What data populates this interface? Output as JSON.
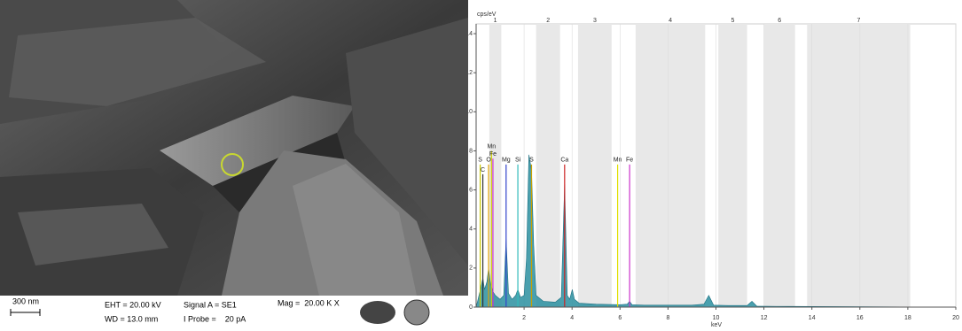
{
  "sem_panel": {
    "scale_label": "300 nm",
    "eht": "EHT = 20.00 kV",
    "wd": "WD = 13.0 mm",
    "signal": "Signal A = SE1",
    "probe": "I Probe =    20 pA",
    "mag": "Mag =  20.00 K X"
  },
  "chart_data": {
    "type": "area",
    "y_label": "cps/eV",
    "x_label": "keV",
    "xlim": [
      0,
      20
    ],
    "ylim": [
      0,
      14.5
    ],
    "xticks": [
      2,
      4,
      6,
      8,
      10,
      12,
      14,
      16,
      18,
      20
    ],
    "yticks": [
      0,
      2,
      4,
      6,
      8,
      10,
      12,
      14
    ],
    "series": [
      {
        "color": "#2a8fa0",
        "x": [
          0,
          0.1,
          0.2,
          0.28,
          0.35,
          0.45,
          0.52,
          0.6,
          0.7,
          0.8,
          1.0,
          1.15,
          1.25,
          1.35,
          1.5,
          1.65,
          1.74,
          1.85,
          2.0,
          2.1,
          2.2,
          2.31,
          2.4,
          2.5,
          2.8,
          3.3,
          3.55,
          3.69,
          3.8,
          3.9,
          4.01,
          4.1,
          4.3,
          5,
          6,
          6.3,
          6.4,
          6.5,
          7,
          8,
          9,
          9.5,
          9.7,
          9.9,
          10.5,
          11.3,
          11.5,
          11.7,
          12.5,
          14,
          16,
          18,
          20
        ],
        "values": [
          0,
          0.5,
          1.0,
          1.5,
          0.9,
          1.3,
          2.0,
          1.2,
          0.8,
          0.6,
          0.4,
          0.6,
          3.5,
          0.7,
          0.4,
          0.6,
          0.9,
          0.5,
          0.6,
          2.5,
          7.8,
          7.0,
          3.2,
          0.6,
          0.3,
          0.25,
          0.5,
          6.3,
          0.6,
          0.4,
          0.9,
          0.4,
          0.2,
          0.15,
          0.12,
          0.15,
          0.3,
          0.12,
          0.1,
          0.1,
          0.1,
          0.15,
          0.6,
          0.1,
          0.08,
          0.08,
          0.3,
          0.05,
          0.04,
          0.03,
          0.02,
          0.01,
          0
        ]
      }
    ],
    "markers": [
      {
        "label": "S",
        "x": 0.17,
        "value": 7.3,
        "color": "#c8c800"
      },
      {
        "label": "C",
        "x": 0.28,
        "value": 6.8,
        "color": "#333333"
      },
      {
        "label": "O",
        "x": 0.52,
        "value": 7.3,
        "color": "#e0a000"
      },
      {
        "label": "Mn",
        "x": 0.64,
        "value": 8.0,
        "color": "#d0d000"
      },
      {
        "label": "Fe",
        "x": 0.7,
        "value": 7.6,
        "color": "#cc33cc"
      },
      {
        "label": "Mg",
        "x": 1.25,
        "value": 7.3,
        "color": "#3344cc"
      },
      {
        "label": "Si",
        "x": 1.74,
        "value": 7.3,
        "color": "#33bbbb"
      },
      {
        "label": "S",
        "x": 2.31,
        "value": 7.3,
        "color": "#c8a000"
      },
      {
        "label": "Ca",
        "x": 3.69,
        "value": 7.3,
        "color": "#cc2222"
      },
      {
        "label": "Mn",
        "x": 5.9,
        "value": 7.3,
        "color": "#e0e000"
      },
      {
        "label": "Fe",
        "x": 6.4,
        "value": 7.3,
        "color": "#cc33cc"
      }
    ],
    "regions": [
      {
        "label": "1",
        "range": [
          0.55,
          1.05
        ]
      },
      {
        "label": "2",
        "range": [
          2.5,
          3.5
        ]
      },
      {
        "label": "3",
        "range": [
          4.25,
          5.65
        ]
      },
      {
        "label": "4",
        "range": [
          6.65,
          9.55
        ]
      },
      {
        "label": "5",
        "range": [
          10.1,
          11.3
        ]
      },
      {
        "label": "6",
        "range": [
          12.0,
          13.3
        ]
      },
      {
        "label": "7",
        "range": [
          13.8,
          18.1
        ]
      }
    ]
  }
}
